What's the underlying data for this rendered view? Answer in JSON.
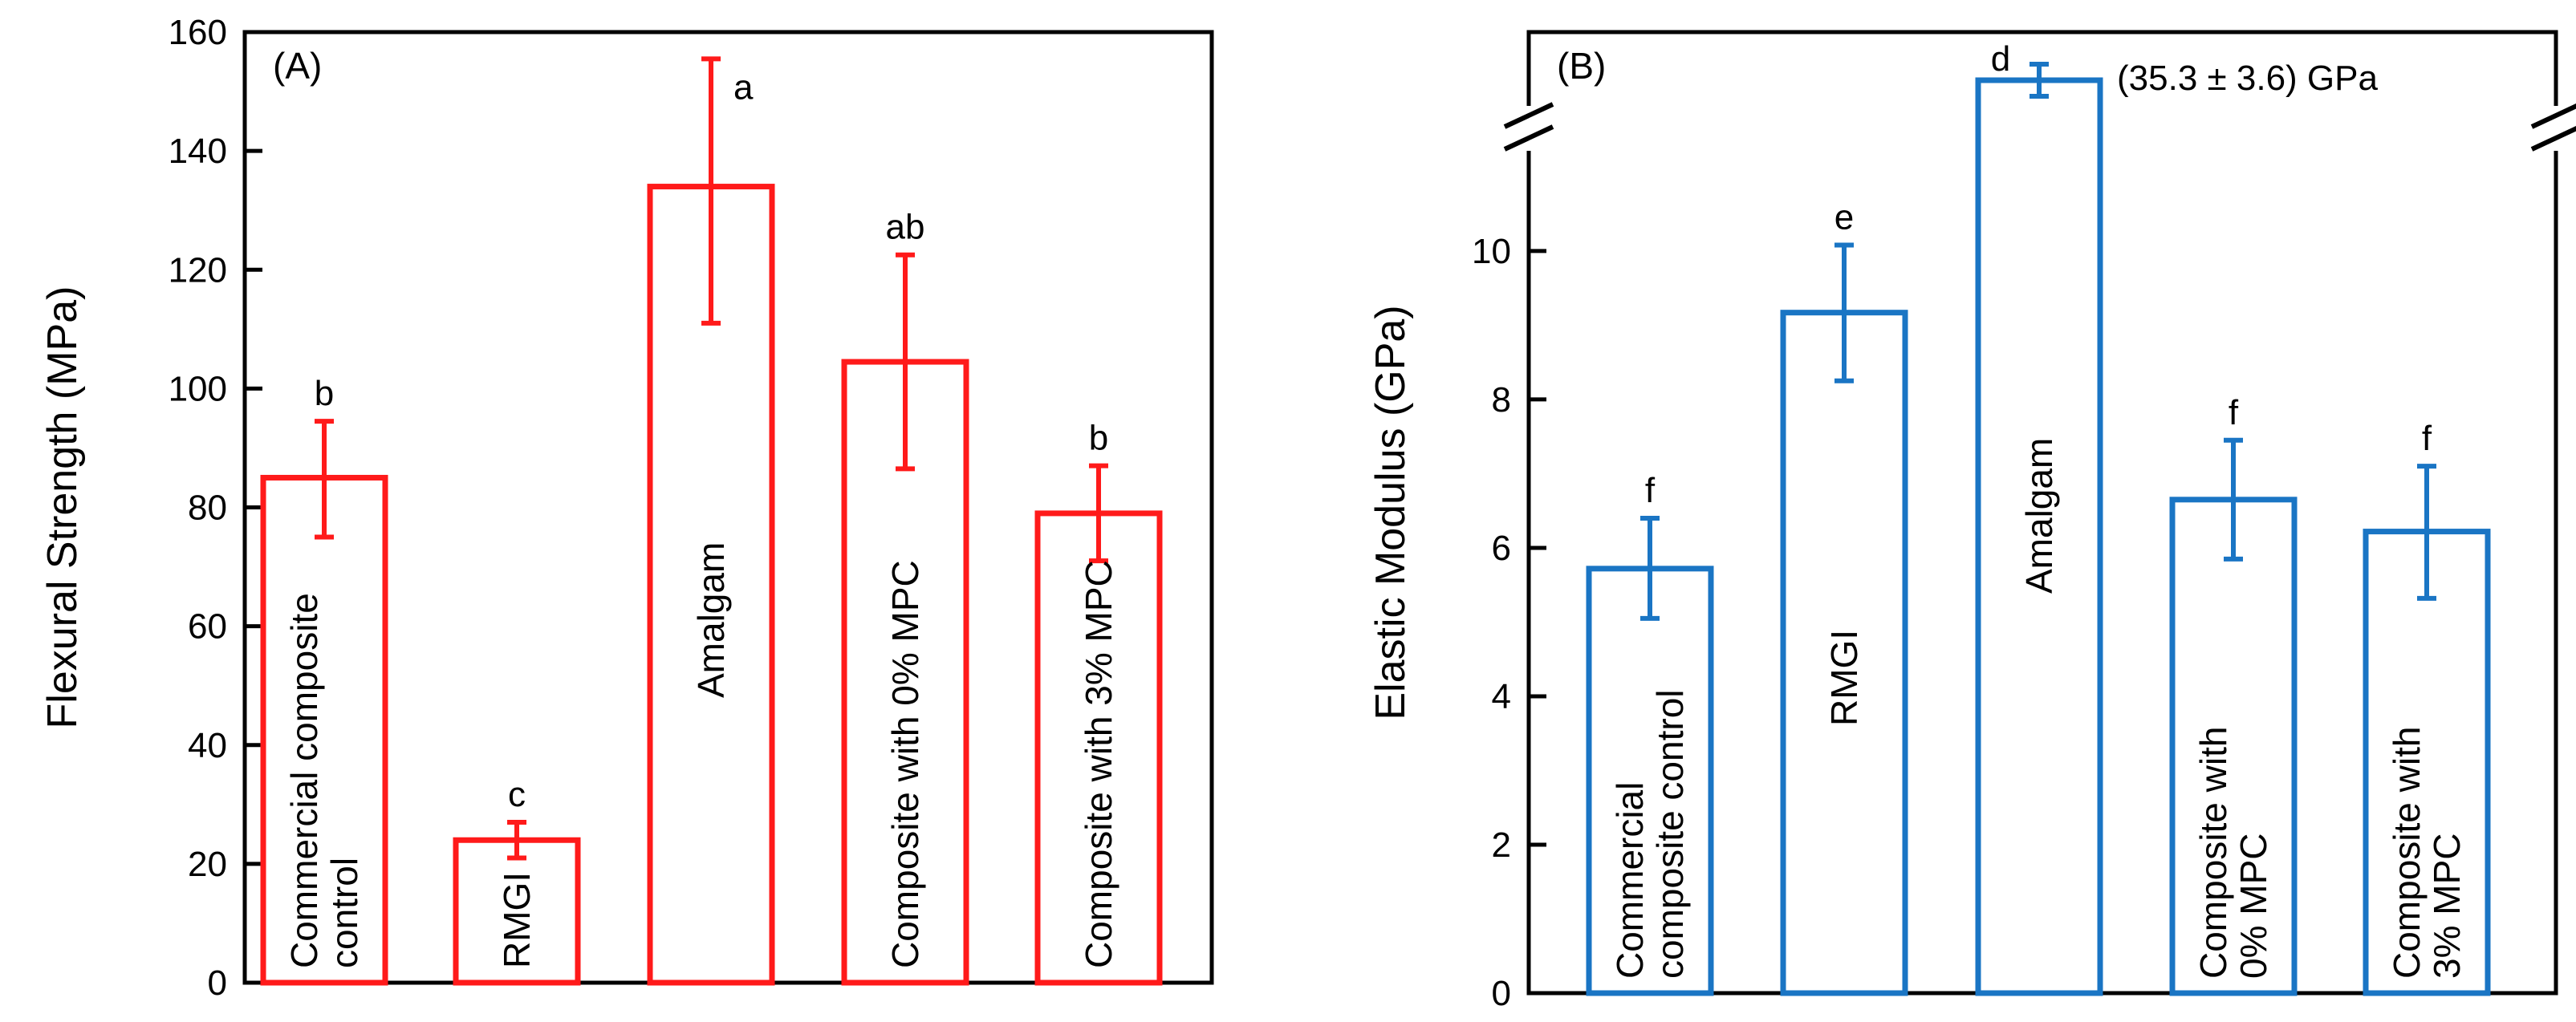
{
  "chart_data": [
    {
      "type": "bar",
      "panel_label": "(A)",
      "ylabel": "Flexural Strength (MPa)",
      "xlabel": "",
      "ylim": [
        0,
        160
      ],
      "yticks": [
        "0",
        "20",
        "40",
        "60",
        "80",
        "100",
        "120",
        "140",
        "160"
      ],
      "color": "#ff1a1a",
      "bars": [
        {
          "lines": [
            "Commercial composite",
            "control"
          ],
          "value": 85,
          "err_low": 75,
          "err_high": 94.5,
          "letter": "b"
        },
        {
          "lines": [
            "RMGI"
          ],
          "value": 24,
          "err_low": 21,
          "err_high": 27,
          "letter": "c"
        },
        {
          "lines": [
            "Amalgam"
          ],
          "value": 134,
          "err_low": 111,
          "err_high": 155.5,
          "letter": "a"
        },
        {
          "lines": [
            "Composite  with 0% MPC"
          ],
          "value": 104.5,
          "err_low": 86.5,
          "err_high": 122.5,
          "letter": "ab"
        },
        {
          "lines": [
            "Composite with 3% MPC"
          ],
          "value": 79,
          "err_low": 71,
          "err_high": 87,
          "letter": "b"
        }
      ]
    },
    {
      "type": "bar",
      "panel_label": "(B)",
      "ylabel": "Elastic Modulus (GPa)",
      "xlabel": "",
      "ylim": [
        0,
        12
      ],
      "yticks": [
        "0",
        "2",
        "4",
        "6",
        "8",
        "10"
      ],
      "axis_break": true,
      "color": "#1a75c4",
      "annotation": "(35.3 ± 3.6) GPa",
      "bars": [
        {
          "lines": [
            "Commercial",
            "composite control"
          ],
          "value": 5.72,
          "err_low": 5.05,
          "err_high": 6.4,
          "letter": "f"
        },
        {
          "lines": [
            "RMGI"
          ],
          "value": 9.17,
          "err_low": 8.25,
          "err_high": 10.08,
          "letter": "e"
        },
        {
          "lines": [
            "Amalgam"
          ],
          "value": 35.3,
          "err_low": 31.7,
          "err_high": 38.9,
          "letter": "d",
          "broken": true
        },
        {
          "lines": [
            "Composite with",
            "0% MPC"
          ],
          "value": 6.65,
          "err_low": 5.85,
          "err_high": 7.45,
          "letter": "f"
        },
        {
          "lines": [
            "Composite with",
            "3% MPC"
          ],
          "value": 6.22,
          "err_low": 5.32,
          "err_high": 7.1,
          "letter": "f"
        }
      ]
    }
  ]
}
